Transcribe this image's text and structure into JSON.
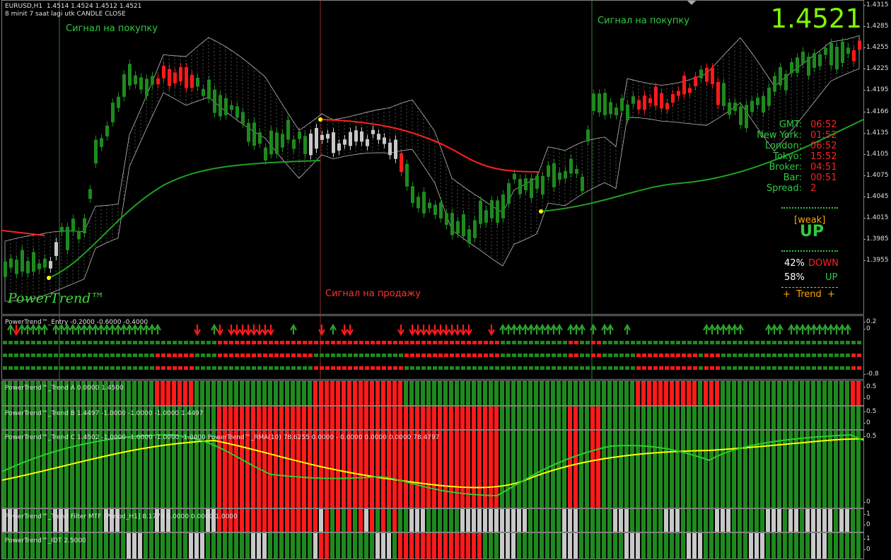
{
  "header": {
    "line1": "EURUSD,H1  1.4514 1.4524 1.4512 1.4521",
    "line2": "8 minit 7 saat lagi utk CANDLE CLOSE"
  },
  "big_price": "1.4521",
  "signals": {
    "buy_left": "Сигнал на покупку",
    "buy_right": "Сигнал на покупку",
    "sell": "Сигнал на продажу"
  },
  "logo": "PowerTrend™",
  "price_axis": [
    "1.4315",
    "1.4285",
    "1.4255",
    "1.4225",
    "1.4195",
    "1.4166",
    "1.4135",
    "1.4105",
    "1.4075",
    "1.4045",
    "1.4015",
    "1.3985",
    "1.3955"
  ],
  "info_panel": {
    "rows": [
      {
        "key": "GMT:",
        "value": "06:52"
      },
      {
        "key": "New York:",
        "value": "01:52"
      },
      {
        "key": "London:",
        "value": "06:52"
      },
      {
        "key": "Tokyo:",
        "value": "15:52"
      },
      {
        "key": "Broker:",
        "value": "04:51"
      },
      {
        "key": "Bar:",
        "value": "00:51"
      },
      {
        "key": "Spread:",
        "value": "2"
      }
    ],
    "strength": "[weak]",
    "direction": "UP",
    "down_pct": "42%",
    "down_label": "DOWN",
    "up_pct": "58%",
    "up_label": "UP",
    "trend_label": "+  Trend  +"
  },
  "panes": {
    "entry": {
      "title": "PowerTrend™_Entry -0.2000 -0.6000 -0.4000",
      "axis": [
        "0.2",
        "0",
        "-0.8"
      ]
    },
    "trend_a": {
      "title": "PowerTrend™_Trend A 0.0000 1.4500",
      "axis": [
        "0.5",
        "0"
      ]
    },
    "trend_b": {
      "title": "PowerTrend™_Trend B 1.4497 -1.0000 -1.0000 -1.0000 1.4497",
      "axis": [
        "0.5",
        "0"
      ]
    },
    "trend_c": {
      "title": "PowerTrend™_Trend C 1.4502 -1.0000 -1.0000 -1.0000 -1.0000 PowerTrend™_RMA(10) 78.6255 0.0000 - 0.0000 0.0000 0.0000 78.4797",
      "axis": [
        "0.5",
        "0"
      ]
    },
    "filter": {
      "title": "PowerTrend™_Trend Filter MTF [Period_H1] 8.1770 0.0000 0.0000 1.0000",
      "axis": [
        "1",
        "0"
      ]
    },
    "idt": {
      "title": "PowerTrend™_IDT 2.5000",
      "axis": [
        "1",
        "0"
      ]
    }
  },
  "colors": {
    "up": "#1e8a1e",
    "down": "#ff1a1a",
    "neutral": "#c8c8c8",
    "yellow": "#ffff00",
    "green_line": "#2ecc2e",
    "red_line": "#ff2020"
  }
}
